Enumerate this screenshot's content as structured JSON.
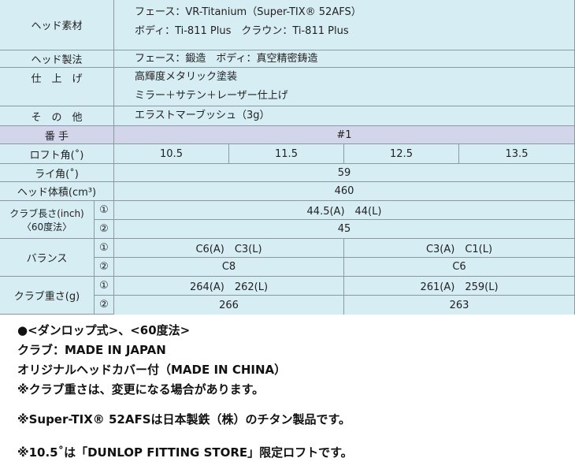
{
  "specs": {
    "head_material": {
      "label": "ヘッド素材",
      "lines": [
        "フェース：VR-Titanium（Super-TIX® 52AFS）",
        "ボディ：Ti-811 Plus　クラウン：Ti-811 Plus"
      ]
    },
    "head_method": {
      "label": "ヘッド製法",
      "lines": [
        "フェース：鍛造　ボディ：真空精密鋳造"
      ]
    },
    "finish": {
      "label": "仕　上　げ",
      "lines": [
        "高輝度メタリック塗装",
        "ミラー＋サテン＋レーザー仕上げ"
      ]
    },
    "other": {
      "label": "そ　の　他",
      "lines": [
        "エラストマーブッシュ（3g）"
      ]
    }
  },
  "table": {
    "number": {
      "label": "番 手",
      "value": "#1"
    },
    "loft": {
      "label": "ロフト角(˚)",
      "values": [
        "10.5",
        "11.5",
        "12.5",
        "13.5"
      ]
    },
    "lie": {
      "label": "ライ角(˚)",
      "value": "59"
    },
    "volume": {
      "label": "ヘッド体積(cm³)",
      "value": "460"
    },
    "length": {
      "label": "クラブ長さ(inch)",
      "sublabel": "〈60度法〉",
      "r1": "44.5(A)　44(L)",
      "r2": "45"
    },
    "balance": {
      "label": "バランス",
      "r1": [
        "C6(A)　C3(L)",
        "C3(A)　C1(L)"
      ],
      "r2": [
        "C8",
        "C6"
      ]
    },
    "weight": {
      "label": "クラブ重さ(g)",
      "r1": [
        "264(A)　262(L)",
        "261(A)　259(L)"
      ],
      "r2": [
        "266",
        "263"
      ]
    },
    "marks": [
      "①",
      "②"
    ]
  },
  "notes": [
    "●<ダンロップ式>、<60度法>",
    "クラブ：MADE IN JAPAN",
    "オリジナルヘッドカバー付（MADE IN CHINA）",
    "※クラブ重さは、変更になる場合があります。",
    "※Super-TIX® 52AFSは日本製鉄（株）のチタン製品です。",
    "※10.5˚は「DUNLOP FITTING STORE」限定ロフトです。"
  ]
}
